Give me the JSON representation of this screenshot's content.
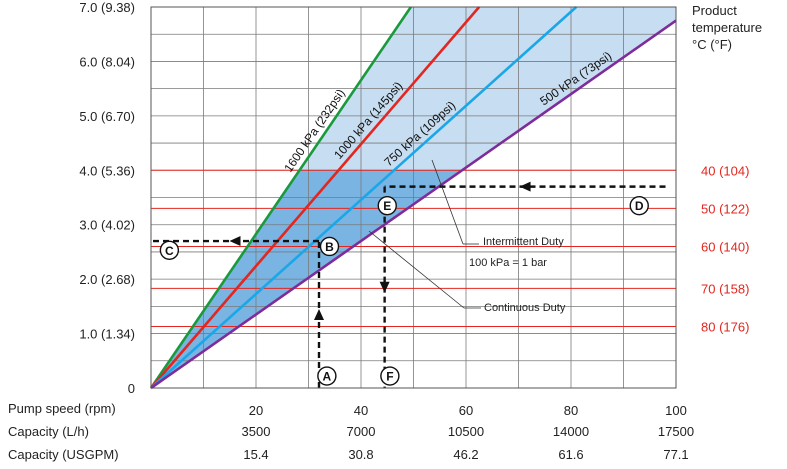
{
  "chart_data": {
    "type": "line",
    "title": "",
    "xlabel_rows": [
      "Pump speed (rpm)",
      "Capacity (L/h)",
      "Capacity (USGPM)"
    ],
    "x_ticks": [
      {
        "speed": "20",
        "lph": "3500",
        "usgpm": "15.4"
      },
      {
        "speed": "40",
        "lph": "7000",
        "usgpm": "30.8"
      },
      {
        "speed": "60",
        "lph": "10500",
        "usgpm": "46.2"
      },
      {
        "speed": "80",
        "lph": "14000",
        "usgpm": "61.6"
      },
      {
        "speed": "100",
        "lph": "17500",
        "usgpm": "77.1"
      }
    ],
    "xlim": [
      0,
      100
    ],
    "ylim": [
      0,
      7
    ],
    "y_ticks": [
      {
        "value": 0,
        "label": "0"
      },
      {
        "value": 1,
        "label": "1.0 (1.34)"
      },
      {
        "value": 2,
        "label": "2.0 (2.68)"
      },
      {
        "value": 3,
        "label": "3.0 (4.02)"
      },
      {
        "value": 4,
        "label": "4.0 (5.36)"
      },
      {
        "value": 5,
        "label": "5.0 (6.70)"
      },
      {
        "value": 6,
        "label": "6.0 (8.04)"
      },
      {
        "value": 7,
        "label": "7.0 (9.38)"
      }
    ],
    "grid": true,
    "series": [
      {
        "name": "1600 kPa (232psi)",
        "color": "#1a9a3c",
        "x": [
          0,
          49.5
        ],
        "y": [
          0,
          7
        ]
      },
      {
        "name": "1000 kPa (145psi)",
        "color": "#e3261f",
        "x": [
          0,
          62.5
        ],
        "y": [
          0,
          7
        ]
      },
      {
        "name": "750 kPa (109psi)",
        "color": "#1aa7e8",
        "x": [
          0,
          81
        ],
        "y": [
          0,
          7
        ]
      },
      {
        "name": "500 kPa (73psi)",
        "color": "#7d2c9a",
        "x": [
          0,
          100
        ],
        "y": [
          0,
          6.75
        ]
      }
    ],
    "shading": {
      "continuous_color": "#7ab4e2",
      "intermittent_color": "#c7ddf1"
    },
    "temperature_title": [
      "Product",
      "temperature",
      "°C (°F)"
    ],
    "temperature_lines": [
      {
        "label": "40 (104)",
        "y": 4.0
      },
      {
        "label": "50 (122)",
        "y": 3.3
      },
      {
        "label": "60 (140)",
        "y": 2.6
      },
      {
        "label": "70 (158)",
        "y": 1.83
      },
      {
        "label": "80 (176)",
        "y": 1.13
      }
    ],
    "temperature_color": "#e3261f",
    "annotations": {
      "intermittent": "Intermittent Duty",
      "conversion": "100 kPa = 1 bar",
      "continuous": "Continuous Duty"
    },
    "markers": [
      {
        "letter": "A",
        "x": 33.5,
        "y": 0.22
      },
      {
        "letter": "B",
        "x": 34,
        "y": 2.6
      },
      {
        "letter": "C",
        "x": 3.5,
        "y": 2.53
      },
      {
        "letter": "D",
        "x": 93,
        "y": 3.35
      },
      {
        "letter": "E",
        "x": 45,
        "y": 3.35
      },
      {
        "letter": "F",
        "x": 45.5,
        "y": 0.22
      }
    ],
    "example_paths": [
      {
        "from": "A",
        "to": "B",
        "points": [
          [
            32,
            0
          ],
          [
            32,
            2.7
          ]
        ]
      },
      {
        "from": "B",
        "to": "C",
        "points": [
          [
            32,
            2.7
          ],
          [
            0,
            2.7
          ]
        ]
      },
      {
        "from": "D",
        "to": "E",
        "points": [
          [
            98,
            3.7
          ],
          [
            44.5,
            3.7
          ]
        ]
      },
      {
        "from": "E",
        "to": "F",
        "points": [
          [
            44.5,
            3.7
          ],
          [
            44.5,
            0
          ]
        ]
      }
    ]
  }
}
